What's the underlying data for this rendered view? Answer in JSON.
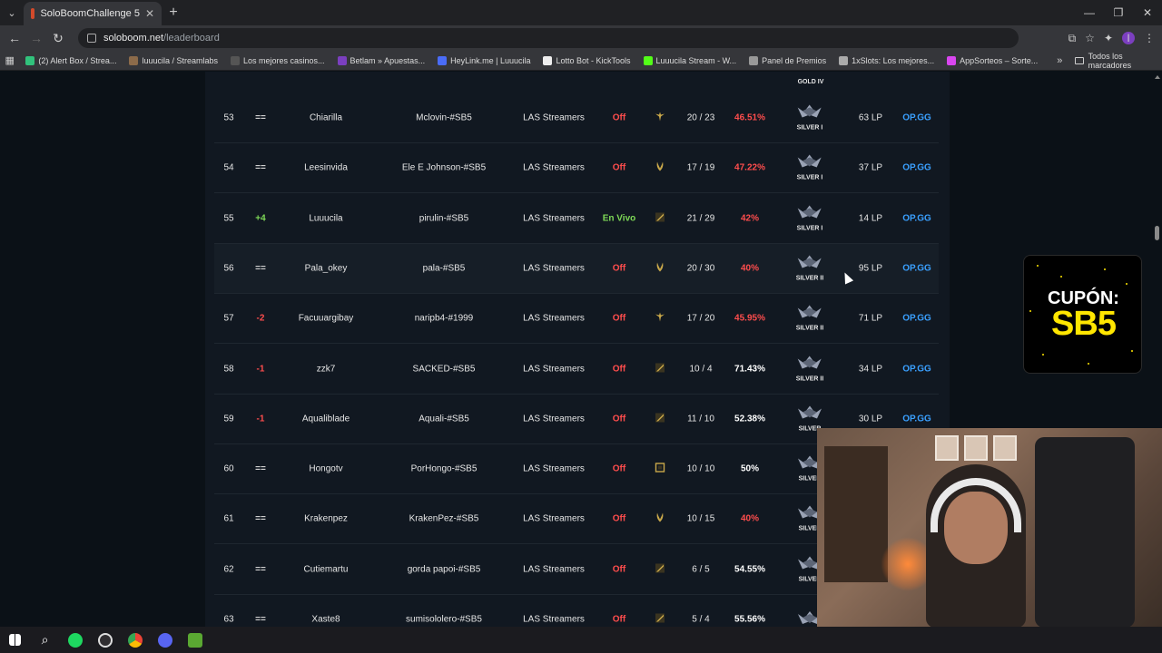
{
  "browser": {
    "tab_title": "SoloBoomChallenge 5",
    "url_host": "soloboom.net",
    "url_path": "/leaderboard",
    "profile_initial": "I",
    "bookmarks": [
      {
        "label": "(2) Alert Box / Strea...",
        "color": "#31c27c"
      },
      {
        "label": "luuucila / Streamlabs",
        "color": "#8c6b4a"
      },
      {
        "label": "Los mejores casinos...",
        "color": "#555555"
      },
      {
        "label": "Betlam » Apuestas...",
        "color": "#7b3fbf"
      },
      {
        "label": "HeyLink.me | Luuucila",
        "color": "#4a6cf7"
      },
      {
        "label": "Lotto Bot - KickTools",
        "color": "#eeeeee"
      },
      {
        "label": "Luuucila Stream - W...",
        "color": "#53fc18"
      },
      {
        "label": "Panel de Premios",
        "color": "#999999"
      },
      {
        "label": "1xSlots: Los mejores...",
        "color": "#aaaaaa"
      },
      {
        "label": "AppSorteos – Sorte...",
        "color": "#d946ef"
      }
    ],
    "all_bookmarks": "Todos los marcadores"
  },
  "leaderboard": {
    "top_rank_label": "GOLD IV",
    "rows": [
      {
        "pos": "53",
        "change": "==",
        "change_type": "same",
        "name": "Chiarilla",
        "account": "Mclovin-#SB5",
        "team": "LAS Streamers",
        "status": "Off",
        "status_type": "off",
        "role_icon": "support-role-icon",
        "record": "20 / 23",
        "winrate": "46.51%",
        "wr_type": "bad",
        "rank": "SILVER I",
        "lp": "63 LP",
        "link": "OP.GG"
      },
      {
        "pos": "54",
        "change": "==",
        "change_type": "same",
        "name": "Leesinvida",
        "account": "Ele E Johnson-#SB5",
        "team": "LAS Streamers",
        "status": "Off",
        "status_type": "off",
        "role_icon": "jungle-role-icon",
        "record": "17 / 19",
        "winrate": "47.22%",
        "wr_type": "bad",
        "rank": "SILVER I",
        "lp": "37 LP",
        "link": "OP.GG"
      },
      {
        "pos": "55",
        "change": "+4",
        "change_type": "up",
        "name": "Luuucila",
        "account": "pirulin-#SB5",
        "team": "LAS Streamers",
        "status": "En Vivo",
        "status_type": "live",
        "role_icon": "top-role-icon",
        "record": "21 / 29",
        "winrate": "42%",
        "wr_type": "bad",
        "rank": "SILVER I",
        "lp": "14 LP",
        "link": "OP.GG"
      },
      {
        "pos": "56",
        "change": "==",
        "change_type": "same",
        "name": "Pala_okey",
        "account": "pala-#SB5",
        "team": "LAS Streamers",
        "status": "Off",
        "status_type": "off",
        "role_icon": "jungle-role-icon",
        "record": "20 / 30",
        "winrate": "40%",
        "wr_type": "bad",
        "rank": "SILVER II",
        "lp": "95 LP",
        "link": "OP.GG"
      },
      {
        "pos": "57",
        "change": "-2",
        "change_type": "down",
        "name": "Facuuargibay",
        "account": "naripb4-#1999",
        "team": "LAS Streamers",
        "status": "Off",
        "status_type": "off",
        "role_icon": "support-role-icon",
        "record": "17 / 20",
        "winrate": "45.95%",
        "wr_type": "bad",
        "rank": "SILVER II",
        "lp": "71 LP",
        "link": "OP.GG"
      },
      {
        "pos": "58",
        "change": "-1",
        "change_type": "down",
        "name": "zzk7",
        "account": "SACKED-#SB5",
        "team": "LAS Streamers",
        "status": "Off",
        "status_type": "off",
        "role_icon": "top-role-icon",
        "record": "10 / 4",
        "winrate": "71.43%",
        "wr_type": "good",
        "rank": "SILVER II",
        "lp": "34 LP",
        "link": "OP.GG"
      },
      {
        "pos": "59",
        "change": "-1",
        "change_type": "down",
        "name": "Aqualiblade",
        "account": "Aquali-#SB5",
        "team": "LAS Streamers",
        "status": "Off",
        "status_type": "off",
        "role_icon": "top-role-icon",
        "record": "11 / 10",
        "winrate": "52.38%",
        "wr_type": "good",
        "rank": "SILVER",
        "lp": "30 LP",
        "link": "OP.GG"
      },
      {
        "pos": "60",
        "change": "==",
        "change_type": "same",
        "name": "Hongotv",
        "account": "PorHongo-#SB5",
        "team": "LAS Streamers",
        "status": "Off",
        "status_type": "off",
        "role_icon": "mid-role-icon",
        "record": "10 / 10",
        "winrate": "50%",
        "wr_type": "good",
        "rank": "SILVER",
        "lp": "",
        "link": ""
      },
      {
        "pos": "61",
        "change": "==",
        "change_type": "same",
        "name": "Krakenpez",
        "account": "KrakenPez-#SB5",
        "team": "LAS Streamers",
        "status": "Off",
        "status_type": "off",
        "role_icon": "jungle-role-icon",
        "record": "10 / 15",
        "winrate": "40%",
        "wr_type": "bad",
        "rank": "SILVER",
        "lp": "",
        "link": ""
      },
      {
        "pos": "62",
        "change": "==",
        "change_type": "same",
        "name": "Cutiemartu",
        "account": "gorda papoi-#SB5",
        "team": "LAS Streamers",
        "status": "Off",
        "status_type": "off",
        "role_icon": "top-role-icon",
        "record": "6 / 5",
        "winrate": "54.55%",
        "wr_type": "good",
        "rank": "SILVER",
        "lp": "",
        "link": ""
      },
      {
        "pos": "63",
        "change": "==",
        "change_type": "same",
        "name": "Xaste8",
        "account": "sumisololero-#SB5",
        "team": "LAS Streamers",
        "status": "Off",
        "status_type": "off",
        "role_icon": "top-role-icon",
        "record": "5 / 4",
        "winrate": "55.56%",
        "wr_type": "good",
        "rank": "",
        "lp": "",
        "link": ""
      }
    ]
  },
  "coupon": {
    "line1": "CUPÓN:",
    "line2": "SB5"
  },
  "colors": {
    "off": "#ff4d4d",
    "live": "#7ed957",
    "link": "#3aa0ff",
    "accent_coupon": "#ffe600"
  }
}
